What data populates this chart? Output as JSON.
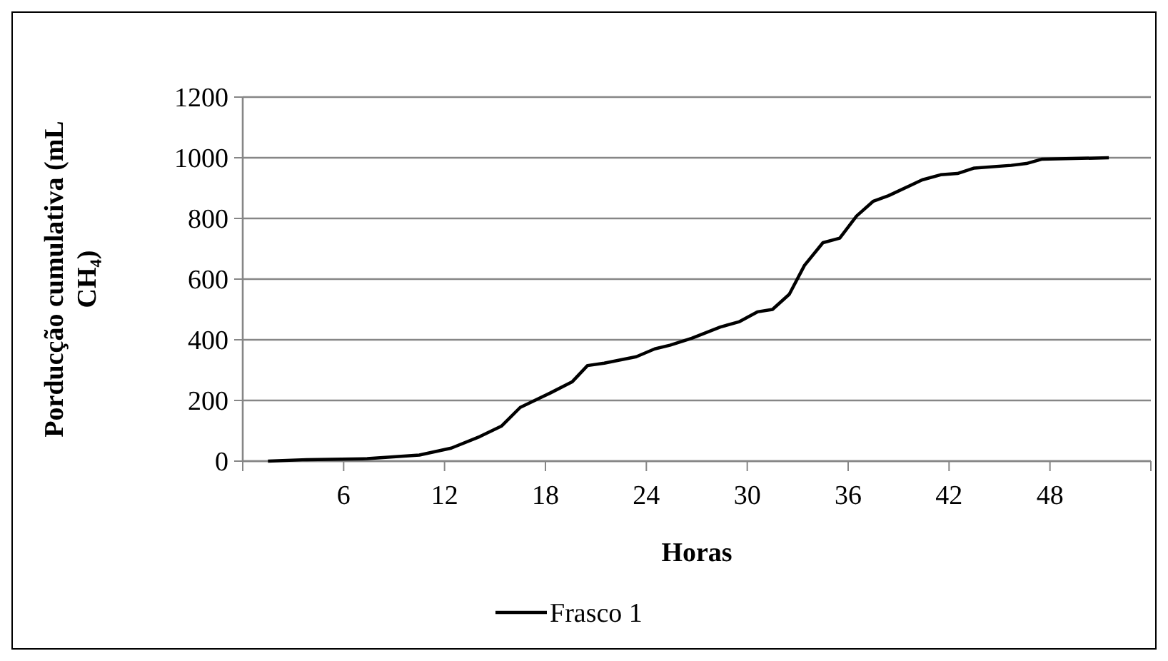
{
  "chart_data": {
    "type": "line",
    "xlabel": "Horas",
    "ylabel": "Porducção cumulativa (mL CH₄)",
    "xlim": [
      0,
      54
    ],
    "xticks": [
      {
        "value": 0,
        "label": null
      },
      6,
      12,
      18,
      24,
      30,
      36,
      42,
      48,
      {
        "value": 54,
        "label": null
      }
    ],
    "ylim": [
      0,
      1200
    ],
    "yticks": [
      0,
      200,
      400,
      600,
      800,
      1000,
      1200
    ],
    "grid": "y",
    "legend": "bottom",
    "marker": "none",
    "line_style": "solid",
    "series": [
      {
        "name": "Frasco 1",
        "color": "#000000",
        "x": [
          1.5,
          3.8,
          7.4,
          10.5,
          12.4,
          14.1,
          15.4,
          16.5,
          18.3,
          19.6,
          20.5,
          21.5,
          23.4,
          24.5,
          25.4,
          26.7,
          28.4,
          29.5,
          30.6,
          31.5,
          32.5,
          33.4,
          34.5,
          35.5,
          36.5,
          37.5,
          38.4,
          40.4,
          41.5,
          42.5,
          43.5,
          45.7,
          46.6,
          47.5,
          51.5
        ],
        "values": [
          0,
          5,
          8,
          20,
          43,
          81,
          116,
          177,
          225,
          262,
          315,
          323,
          344,
          370,
          382,
          405,
          442,
          459,
          492,
          500,
          550,
          645,
          720,
          735,
          808,
          857,
          875,
          927,
          944,
          948,
          966,
          975,
          981,
          995,
          1000
        ]
      }
    ]
  }
}
